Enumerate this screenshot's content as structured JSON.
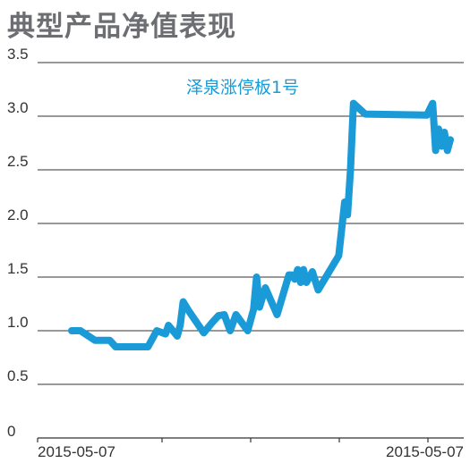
{
  "chart_data": {
    "type": "line",
    "title": "典型产品净值表现",
    "xlabel": "",
    "ylabel": "",
    "ylim": [
      0,
      3.5
    ],
    "y_ticks": [
      "0",
      "0.5",
      "1.0",
      "1.5",
      "2.0",
      "2.5",
      "3.0",
      "3.5"
    ],
    "x_tick_labels": [
      "2015-05-07",
      "2015-05-07"
    ],
    "grid": "horizontal",
    "series": [
      {
        "name": "泽泉涨停板1号",
        "color": "#1a9ad7",
        "x": [
          0,
          3,
          8,
          13,
          15,
          26,
          29,
          32,
          33,
          36,
          37,
          38,
          40,
          45,
          48,
          50,
          52,
          54,
          56,
          60,
          62,
          63,
          64,
          66,
          70,
          74,
          75,
          76,
          77,
          78,
          79,
          80,
          82,
          84,
          91,
          93,
          94,
          95,
          96,
          100,
          121,
          123,
          124,
          125,
          126,
          127,
          128,
          129
        ],
        "y": [
          1.0,
          1.0,
          0.91,
          0.91,
          0.85,
          0.85,
          1.0,
          0.97,
          1.05,
          0.95,
          1.05,
          1.27,
          1.18,
          0.98,
          1.08,
          1.14,
          1.15,
          1.0,
          1.15,
          1.0,
          1.2,
          1.5,
          1.22,
          1.4,
          1.15,
          1.52,
          1.52,
          1.48,
          1.57,
          1.45,
          1.57,
          1.45,
          1.55,
          1.38,
          1.7,
          2.2,
          2.08,
          2.5,
          3.12,
          3.02,
          3.01,
          3.12,
          2.68,
          2.88,
          2.72,
          2.85,
          2.68,
          2.78
        ]
      }
    ]
  }
}
